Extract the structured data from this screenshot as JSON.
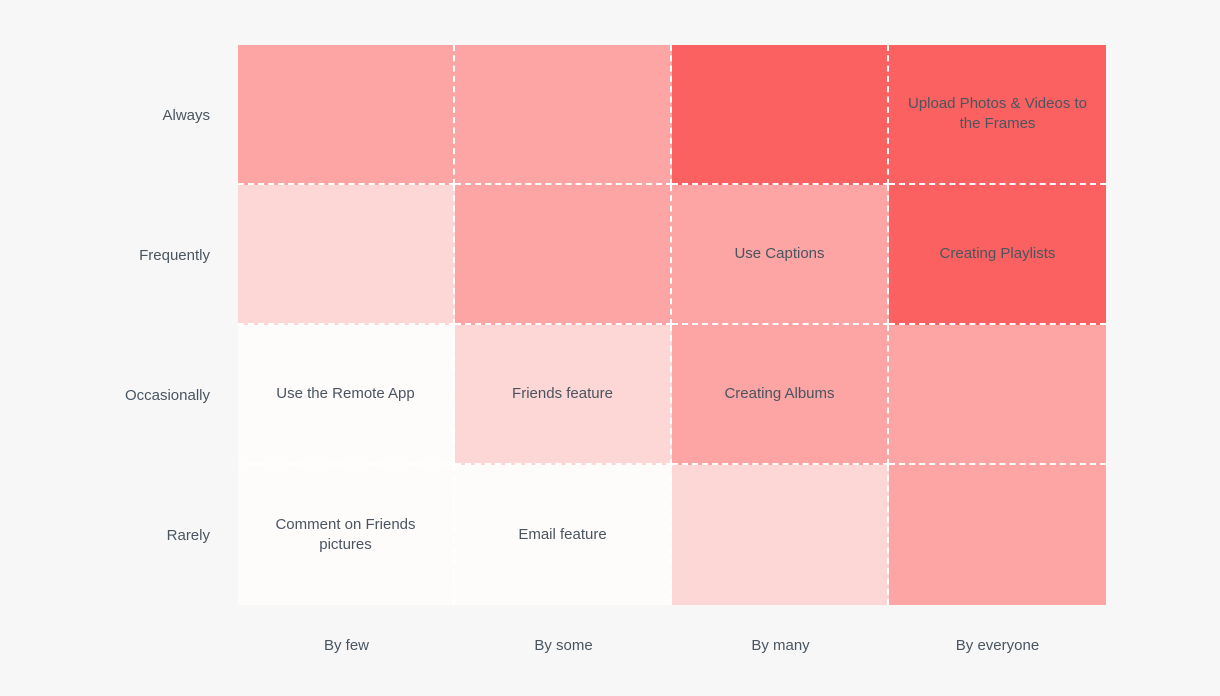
{
  "chart": {
    "type": "heatmap",
    "background_color": "#f7f7f7",
    "grid_border_color": "#ffffff",
    "grid_border_style": "dashed",
    "grid_border_width": 2,
    "label_color": "#4a5560",
    "label_fontsize": 15,
    "cell_text_color": "#4a5560",
    "cell_fontsize": 15,
    "y_labels": [
      "Always",
      "Frequently",
      "Occasionally",
      "Rarely"
    ],
    "x_labels": [
      "By few",
      "By some",
      "By many",
      "By everyone"
    ],
    "rows": [
      [
        {
          "bg": "#fda4a4",
          "text": ""
        },
        {
          "bg": "#fda4a4",
          "text": ""
        },
        {
          "bg": "#fb6161",
          "text": ""
        },
        {
          "bg": "#fb6161",
          "text": "Upload Photos & Videos to the Frames"
        }
      ],
      [
        {
          "bg": "#fdd6d6",
          "text": ""
        },
        {
          "bg": "#fda4a4",
          "text": ""
        },
        {
          "bg": "#fda4a4",
          "text": "Use Captions"
        },
        {
          "bg": "#fb6161",
          "text": "Creating Playlists"
        }
      ],
      [
        {
          "bg": "#fefbfb",
          "text": "Use the Remote App"
        },
        {
          "bg": "#fdd6d6",
          "text": "Friends feature"
        },
        {
          "bg": "#fda4a4",
          "text": "Creating  Albums"
        },
        {
          "bg": "#fda4a4",
          "text": ""
        }
      ],
      [
        {
          "bg": "#fefbfb",
          "text": "Comment on Friends pictures"
        },
        {
          "bg": "#fefbfb",
          "text": "Email feature"
        },
        {
          "bg": "#fdd6d6",
          "text": ""
        },
        {
          "bg": "#fda4a4",
          "text": ""
        }
      ]
    ]
  }
}
